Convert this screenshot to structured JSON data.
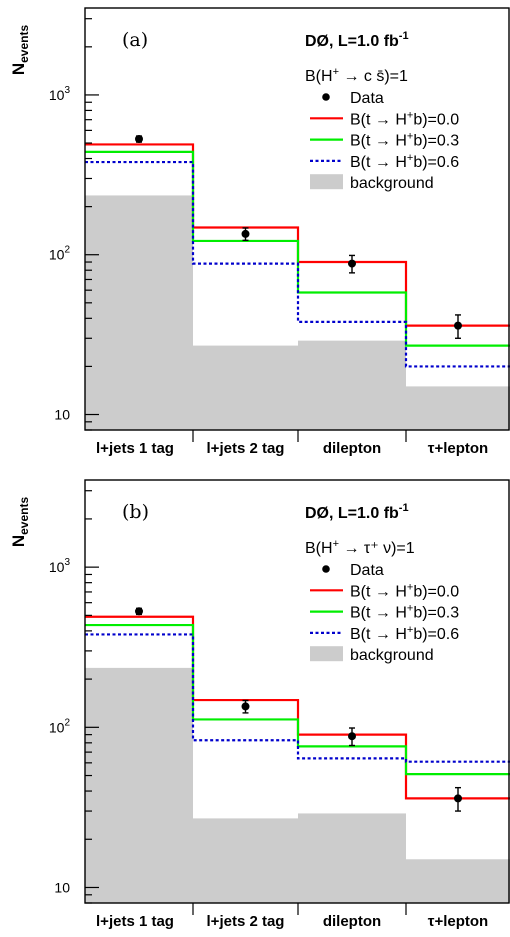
{
  "colors": {
    "background_fill": "#cccccc",
    "red": "#ff0000",
    "green": "#00ee00",
    "blue": "#0000cc",
    "data": "#000000"
  },
  "chart_data": [
    {
      "type": "bar",
      "panel_label": "(a)",
      "experiment": "DØ, L=1.0 fb",
      "experiment_sup": "-1",
      "condition": "B(H",
      "condition_sup": "+",
      "condition_rest": " → c s̄)=1",
      "ylabel": "N",
      "ylabel_sub": "events",
      "yscale": "log",
      "ylim": [
        8,
        3500
      ],
      "yticks": [
        {
          "value": 10,
          "label": "10"
        },
        {
          "value": 100,
          "label": "10"
        },
        {
          "value": 1000,
          "label": "10"
        }
      ],
      "ytick_exps": [
        "",
        "2",
        "3"
      ],
      "categories": [
        "l+jets 1 tag",
        "l+jets 2 tag",
        "dilepton",
        "τ+lepton"
      ],
      "data": {
        "name": "Data",
        "values": [
          530,
          135,
          88,
          36
        ],
        "errors_low": [
          23,
          12,
          11,
          6
        ],
        "errors_high": [
          23,
          12,
          11,
          6
        ]
      },
      "series": [
        {
          "name": "B(t → H",
          "name_sup": "+",
          "name_rest": "b)=0.0",
          "color": "red",
          "style": "solid",
          "values": [
            490,
            148,
            90,
            36
          ]
        },
        {
          "name": "B(t → H",
          "name_sup": "+",
          "name_rest": "b)=0.3",
          "color": "green",
          "style": "solid",
          "values": [
            440,
            122,
            58,
            27
          ]
        },
        {
          "name": "B(t → H",
          "name_sup": "+",
          "name_rest": "b)=0.6",
          "color": "blue",
          "style": "dotted",
          "values": [
            380,
            88,
            38,
            20
          ]
        }
      ],
      "background": {
        "name": "background",
        "values": [
          235,
          27,
          29,
          15
        ]
      }
    },
    {
      "type": "bar",
      "panel_label": "(b)",
      "experiment": "DØ, L=1.0 fb",
      "experiment_sup": "-1",
      "condition": "B(H",
      "condition_sup": "+",
      "condition_rest": " → τ⁺ ν)=1",
      "ylabel": "N",
      "ylabel_sub": "events",
      "yscale": "log",
      "ylim": [
        8,
        3500
      ],
      "yticks": [
        {
          "value": 10,
          "label": "10"
        },
        {
          "value": 100,
          "label": "10"
        },
        {
          "value": 1000,
          "label": "10"
        }
      ],
      "ytick_exps": [
        "",
        "2",
        "3"
      ],
      "categories": [
        "l+jets 1 tag",
        "l+jets 2 tag",
        "dilepton",
        "τ+lepton"
      ],
      "data": {
        "name": "Data",
        "values": [
          530,
          135,
          88,
          36
        ],
        "errors_low": [
          23,
          12,
          11,
          6
        ],
        "errors_high": [
          23,
          12,
          11,
          6
        ]
      },
      "series": [
        {
          "name": "B(t → H",
          "name_sup": "+",
          "name_rest": "b)=0.0",
          "color": "red",
          "style": "solid",
          "values": [
            490,
            148,
            90,
            36
          ]
        },
        {
          "name": "B(t → H",
          "name_sup": "+",
          "name_rest": "b)=0.3",
          "color": "green",
          "style": "solid",
          "values": [
            435,
            112,
            76,
            51
          ]
        },
        {
          "name": "B(t → H",
          "name_sup": "+",
          "name_rest": "b)=0.6",
          "color": "blue",
          "style": "dotted",
          "values": [
            380,
            83,
            64,
            61
          ]
        }
      ],
      "background": {
        "name": "background",
        "values": [
          235,
          27,
          29,
          15
        ]
      }
    }
  ]
}
